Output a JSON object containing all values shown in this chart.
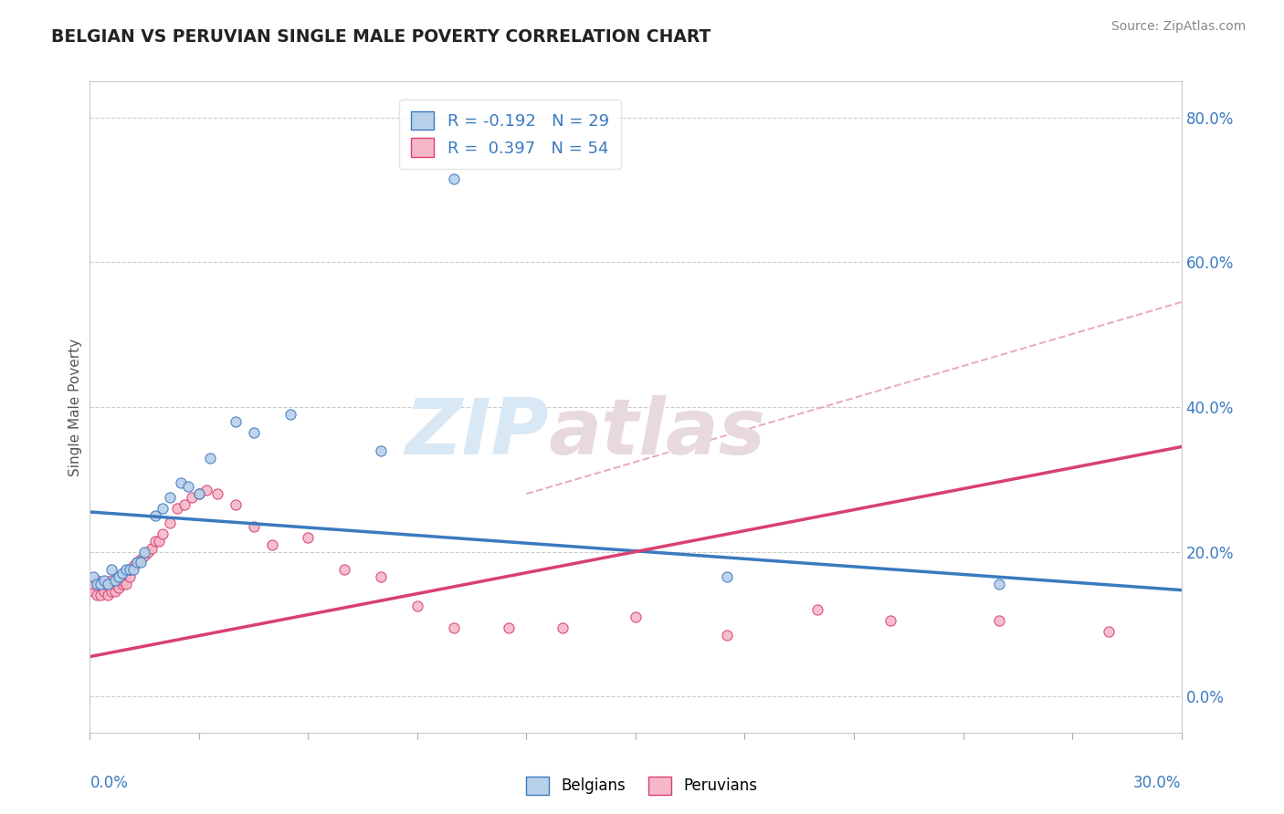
{
  "title": "BELGIAN VS PERUVIAN SINGLE MALE POVERTY CORRELATION CHART",
  "source": "Source: ZipAtlas.com",
  "ylabel": "Single Male Poverty",
  "xlim": [
    0.0,
    0.3
  ],
  "ylim": [
    -0.05,
    0.85
  ],
  "belgian_R": -0.192,
  "belgian_N": 29,
  "peruvian_R": 0.397,
  "peruvian_N": 54,
  "belgian_color": "#b8d0ea",
  "peruvian_color": "#f5b8c8",
  "belgian_line_color": "#3a7abf",
  "peruvian_line_color": "#d94070",
  "dashed_line_color": "#e8a0b0",
  "belgian_scatter_x": [
    0.001,
    0.002,
    0.003,
    0.004,
    0.005,
    0.006,
    0.007,
    0.008,
    0.009,
    0.01,
    0.011,
    0.012,
    0.013,
    0.014,
    0.015,
    0.018,
    0.02,
    0.022,
    0.025,
    0.027,
    0.03,
    0.033,
    0.04,
    0.045,
    0.055,
    0.08,
    0.1,
    0.175,
    0.25
  ],
  "belgian_scatter_y": [
    0.165,
    0.155,
    0.155,
    0.16,
    0.155,
    0.175,
    0.16,
    0.165,
    0.17,
    0.175,
    0.175,
    0.175,
    0.185,
    0.185,
    0.2,
    0.25,
    0.26,
    0.275,
    0.295,
    0.29,
    0.28,
    0.33,
    0.38,
    0.365,
    0.39,
    0.34,
    0.715,
    0.165,
    0.155
  ],
  "peruvian_scatter_x": [
    0.001,
    0.001,
    0.002,
    0.002,
    0.003,
    0.003,
    0.004,
    0.004,
    0.005,
    0.005,
    0.006,
    0.006,
    0.007,
    0.007,
    0.008,
    0.008,
    0.009,
    0.009,
    0.01,
    0.01,
    0.011,
    0.011,
    0.012,
    0.013,
    0.014,
    0.015,
    0.016,
    0.017,
    0.018,
    0.019,
    0.02,
    0.022,
    0.024,
    0.026,
    0.028,
    0.03,
    0.032,
    0.035,
    0.04,
    0.045,
    0.05,
    0.06,
    0.07,
    0.08,
    0.09,
    0.1,
    0.115,
    0.13,
    0.15,
    0.175,
    0.2,
    0.22,
    0.25,
    0.28
  ],
  "peruvian_scatter_y": [
    0.145,
    0.155,
    0.14,
    0.16,
    0.14,
    0.155,
    0.145,
    0.155,
    0.14,
    0.155,
    0.145,
    0.16,
    0.145,
    0.155,
    0.15,
    0.165,
    0.155,
    0.16,
    0.155,
    0.17,
    0.165,
    0.175,
    0.18,
    0.185,
    0.19,
    0.195,
    0.2,
    0.205,
    0.215,
    0.215,
    0.225,
    0.24,
    0.26,
    0.265,
    0.275,
    0.28,
    0.285,
    0.28,
    0.265,
    0.235,
    0.21,
    0.22,
    0.175,
    0.165,
    0.125,
    0.095,
    0.095,
    0.095,
    0.11,
    0.085,
    0.12,
    0.105,
    0.105,
    0.09
  ],
  "belgian_trend_x": [
    0.0,
    0.3
  ],
  "belgian_trend_y": [
    0.255,
    0.147
  ],
  "peruvian_trend_x": [
    0.0,
    0.3
  ],
  "peruvian_trend_y": [
    0.055,
    0.345
  ],
  "dashed_trend_x": [
    0.12,
    0.3
  ],
  "dashed_trend_y": [
    0.28,
    0.545
  ]
}
